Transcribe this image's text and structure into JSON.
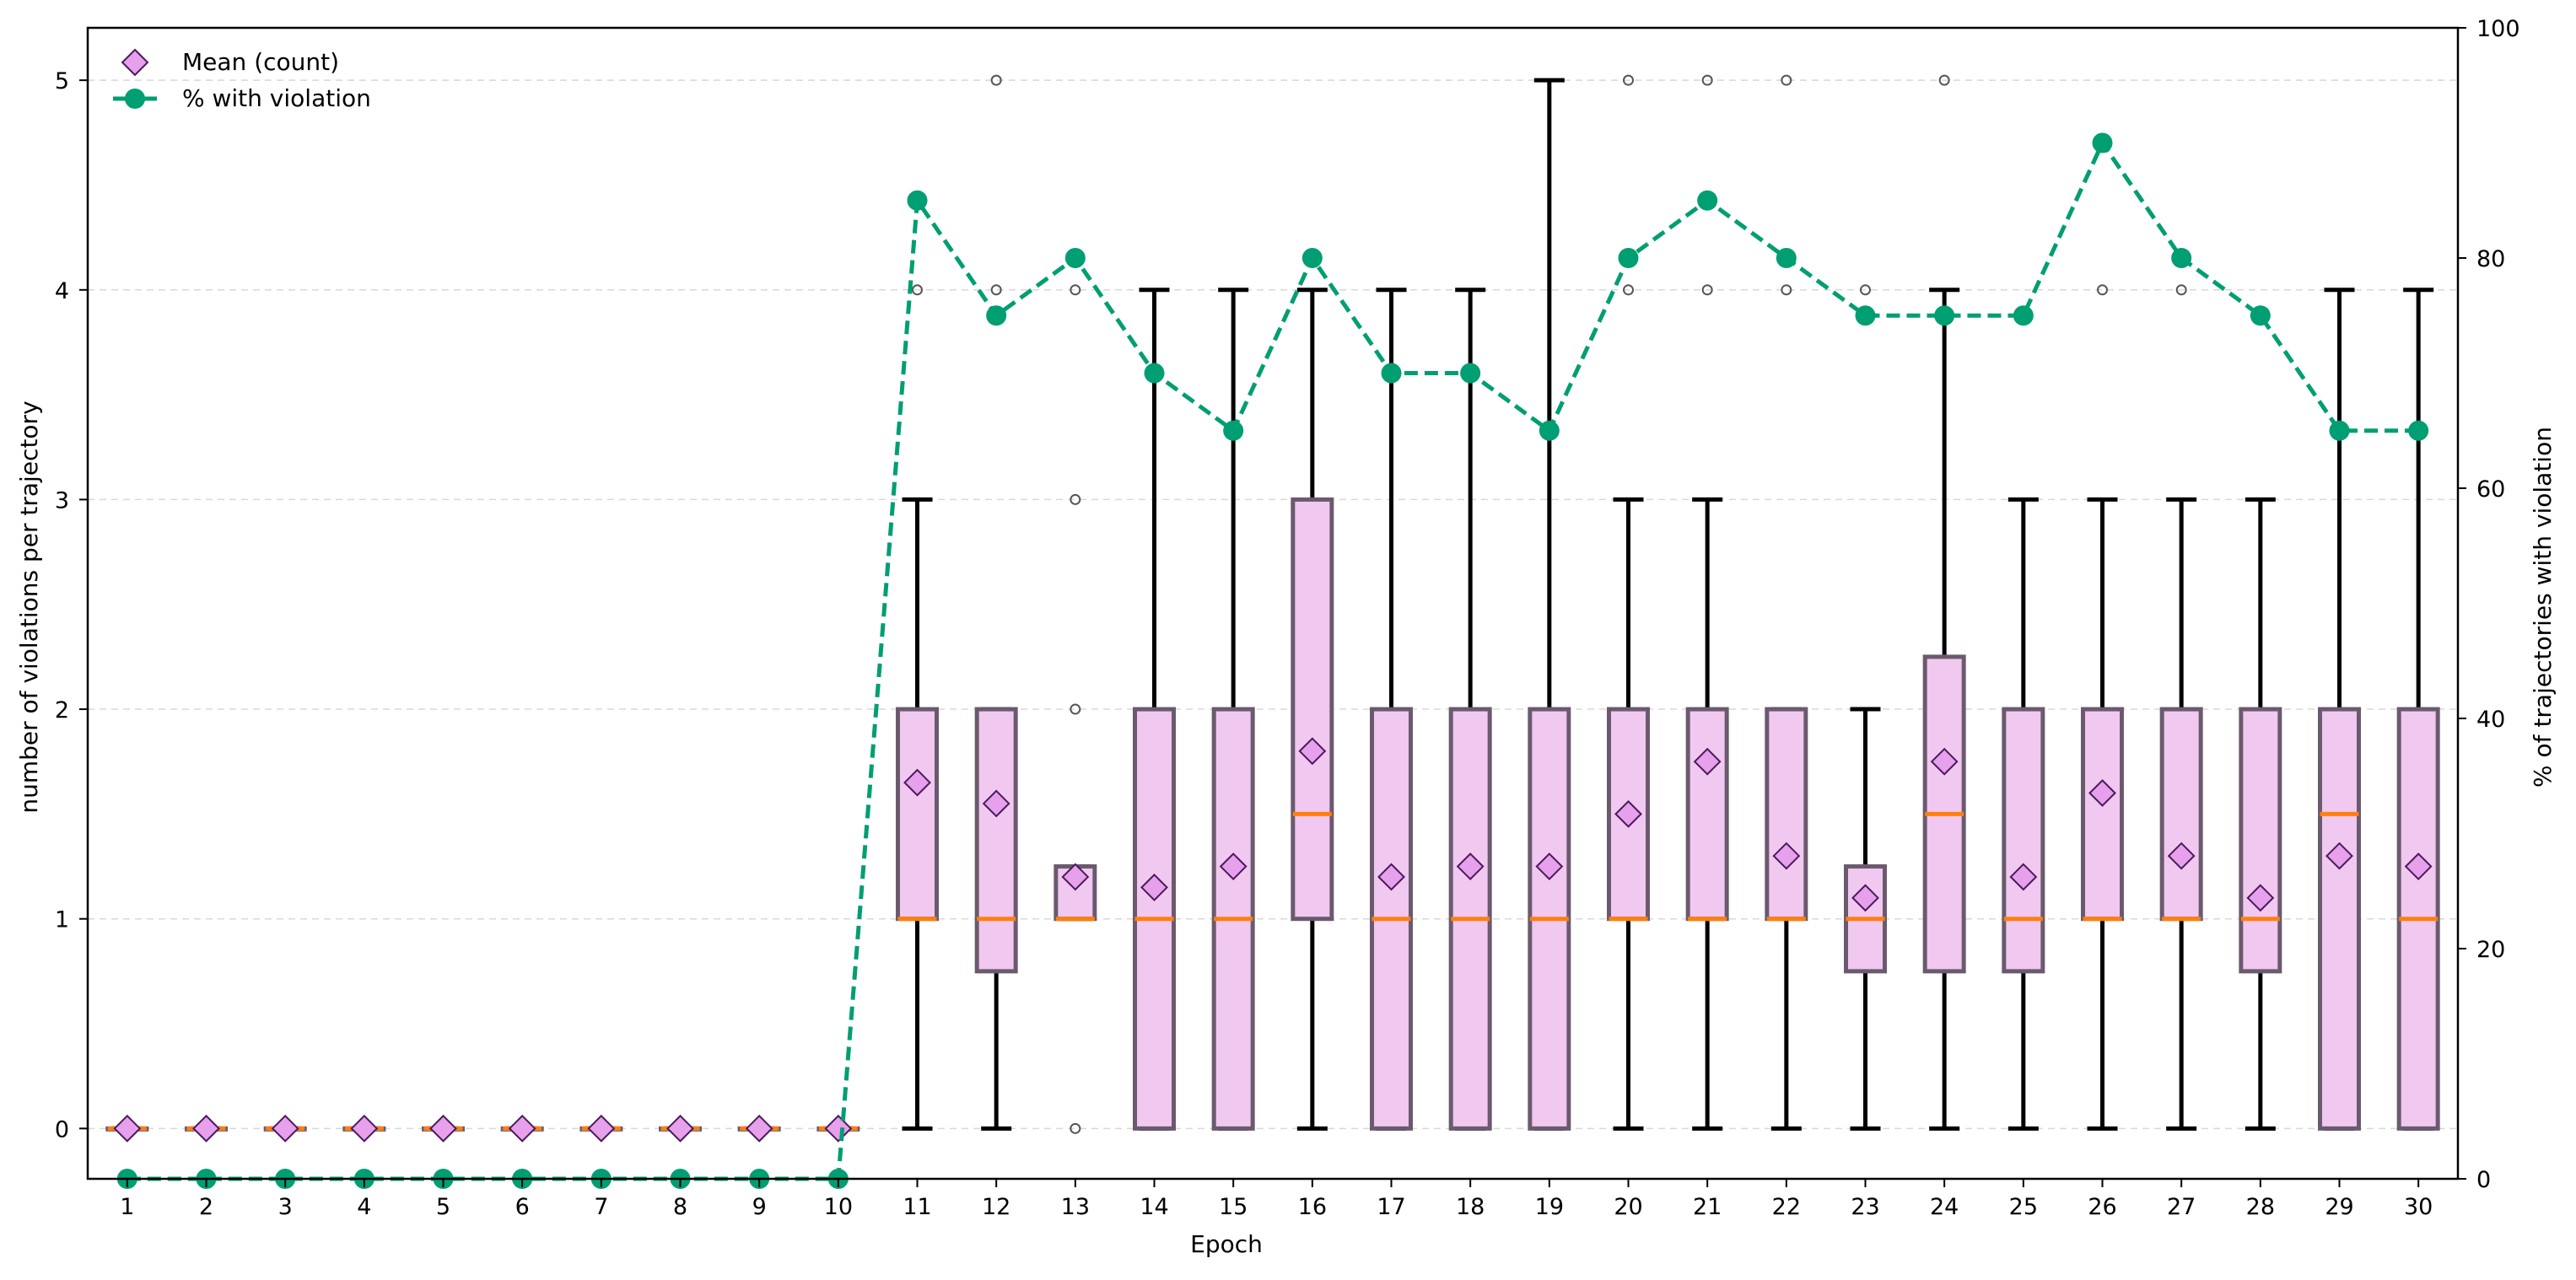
{
  "chart_data": {
    "type": "box",
    "xlabel": "Epoch",
    "ylabel_left": "number of violations per trajectory",
    "ylabel_right": "% of trajectories with violation",
    "ylim_left": [
      -0.24,
      5.25
    ],
    "yticks_left": [
      0,
      1,
      2,
      3,
      4,
      5
    ],
    "ylim_right": [
      0,
      100
    ],
    "yticks_right": [
      0,
      20,
      40,
      60,
      80,
      100
    ],
    "grid": "horizontal dashed",
    "legend_position": "top-left",
    "legend": [
      {
        "label": "Mean (count)",
        "marker": "diamond",
        "color": "#e7a0ec"
      },
      {
        "label": "% with violation",
        "marker": "circle-dashed-line",
        "color": "#009e73"
      }
    ],
    "colors": {
      "box_fill": "#f0c8f0",
      "box_edge": "#6b5a6e",
      "median": "#ff7f0e",
      "mean_marker": "#e7a0ec",
      "mean_edge": "#4a1a5a",
      "pct_line": "#009e73",
      "whisker": "#000000",
      "outlier": "#555555"
    },
    "epochs": [
      "1",
      "2",
      "3",
      "4",
      "5",
      "6",
      "7",
      "8",
      "9",
      "10",
      "11",
      "12",
      "13",
      "14",
      "15",
      "16",
      "17",
      "18",
      "19",
      "20",
      "21",
      "22",
      "23",
      "24",
      "25",
      "26",
      "27",
      "28",
      "29",
      "30"
    ],
    "boxes": [
      {
        "q1": 0,
        "median": 0,
        "q3": 0,
        "whislo": 0,
        "whishi": 0,
        "outliers": []
      },
      {
        "q1": 0,
        "median": 0,
        "q3": 0,
        "whislo": 0,
        "whishi": 0,
        "outliers": []
      },
      {
        "q1": 0,
        "median": 0,
        "q3": 0,
        "whislo": 0,
        "whishi": 0,
        "outliers": []
      },
      {
        "q1": 0,
        "median": 0,
        "q3": 0,
        "whislo": 0,
        "whishi": 0,
        "outliers": []
      },
      {
        "q1": 0,
        "median": 0,
        "q3": 0,
        "whislo": 0,
        "whishi": 0,
        "outliers": []
      },
      {
        "q1": 0,
        "median": 0,
        "q3": 0,
        "whislo": 0,
        "whishi": 0,
        "outliers": []
      },
      {
        "q1": 0,
        "median": 0,
        "q3": 0,
        "whislo": 0,
        "whishi": 0,
        "outliers": []
      },
      {
        "q1": 0,
        "median": 0,
        "q3": 0,
        "whislo": 0,
        "whishi": 0,
        "outliers": []
      },
      {
        "q1": 0,
        "median": 0,
        "q3": 0,
        "whislo": 0,
        "whishi": 0,
        "outliers": []
      },
      {
        "q1": 0,
        "median": 0,
        "q3": 0,
        "whislo": 0,
        "whishi": 0,
        "outliers": []
      },
      {
        "q1": 1,
        "median": 1,
        "q3": 2,
        "whislo": 0,
        "whishi": 3,
        "outliers": [
          4
        ]
      },
      {
        "q1": 0.75,
        "median": 1,
        "q3": 2,
        "whislo": 0,
        "whishi": 2,
        "outliers": [
          4,
          5
        ]
      },
      {
        "q1": 1,
        "median": 1,
        "q3": 1.25,
        "whislo": 1,
        "whishi": 1.25,
        "outliers": [
          0,
          2,
          3,
          4
        ]
      },
      {
        "q1": 0,
        "median": 1,
        "q3": 2,
        "whislo": 0,
        "whishi": 4,
        "outliers": []
      },
      {
        "q1": 0,
        "median": 1,
        "q3": 2,
        "whislo": 0,
        "whishi": 4,
        "outliers": []
      },
      {
        "q1": 1,
        "median": 1.5,
        "q3": 3,
        "whislo": 0,
        "whishi": 4,
        "outliers": []
      },
      {
        "q1": 0,
        "median": 1,
        "q3": 2,
        "whislo": 0,
        "whishi": 4,
        "outliers": []
      },
      {
        "q1": 0,
        "median": 1,
        "q3": 2,
        "whislo": 0,
        "whishi": 4,
        "outliers": []
      },
      {
        "q1": 0,
        "median": 1,
        "q3": 2,
        "whislo": 0,
        "whishi": 5,
        "outliers": []
      },
      {
        "q1": 1,
        "median": 1,
        "q3": 2,
        "whislo": 0,
        "whishi": 3,
        "outliers": [
          4,
          5
        ]
      },
      {
        "q1": 1,
        "median": 1,
        "q3": 2,
        "whislo": 0,
        "whishi": 3,
        "outliers": [
          4,
          5
        ]
      },
      {
        "q1": 1,
        "median": 1,
        "q3": 2,
        "whislo": 0,
        "whishi": 2,
        "outliers": [
          4,
          5
        ]
      },
      {
        "q1": 0.75,
        "median": 1,
        "q3": 1.25,
        "whislo": 0,
        "whishi": 2,
        "outliers": [
          4
        ]
      },
      {
        "q1": 0.75,
        "median": 1.5,
        "q3": 2.25,
        "whislo": 0,
        "whishi": 4,
        "outliers": [
          5
        ]
      },
      {
        "q1": 0.75,
        "median": 1,
        "q3": 2,
        "whislo": 0,
        "whishi": 3,
        "outliers": []
      },
      {
        "q1": 1,
        "median": 1,
        "q3": 2,
        "whislo": 0,
        "whishi": 3,
        "outliers": [
          4
        ]
      },
      {
        "q1": 1,
        "median": 1,
        "q3": 2,
        "whislo": 0,
        "whishi": 3,
        "outliers": [
          4
        ]
      },
      {
        "q1": 0.75,
        "median": 1,
        "q3": 2,
        "whislo": 0,
        "whishi": 3,
        "outliers": []
      },
      {
        "q1": 0,
        "median": 1.5,
        "q3": 2,
        "whislo": 0,
        "whishi": 4,
        "outliers": []
      },
      {
        "q1": 0,
        "median": 1,
        "q3": 2,
        "whislo": 0,
        "whishi": 4,
        "outliers": []
      }
    ],
    "series": [
      {
        "name": "Mean (count)",
        "axis": "left",
        "values": [
          0,
          0,
          0,
          0,
          0,
          0,
          0,
          0,
          0,
          0,
          1.65,
          1.55,
          1.2,
          1.15,
          1.25,
          1.8,
          1.2,
          1.25,
          1.25,
          1.5,
          1.75,
          1.3,
          1.1,
          1.75,
          1.2,
          1.6,
          1.3,
          1.1,
          1.3,
          1.25
        ]
      },
      {
        "name": "% with violation",
        "axis": "right",
        "values": [
          0,
          0,
          0,
          0,
          0,
          0,
          0,
          0,
          0,
          0,
          85,
          75,
          80,
          70,
          65,
          80,
          70,
          70,
          65,
          80,
          85,
          80,
          75,
          75,
          75,
          90,
          80,
          75,
          65,
          65
        ]
      }
    ]
  }
}
